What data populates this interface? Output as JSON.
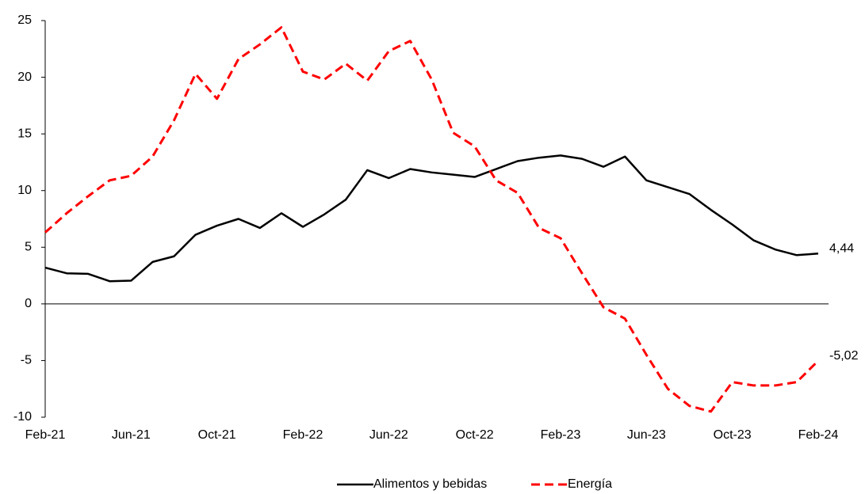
{
  "chart_data": {
    "type": "line",
    "categories": [
      "Feb-21",
      null,
      null,
      null,
      "Jun-21",
      null,
      null,
      null,
      "Oct-21",
      null,
      null,
      null,
      "Feb-22",
      null,
      null,
      null,
      "Jun-22",
      null,
      null,
      null,
      "Oct-22",
      null,
      null,
      null,
      "Feb-23",
      null,
      null,
      null,
      "Jun-23",
      null,
      null,
      null,
      "Oct-23",
      null,
      null,
      null,
      "Feb-24"
    ],
    "series": [
      {
        "name": "Alimentos y bebidas",
        "color": "#000000",
        "dashed": false,
        "values": [
          3.2,
          2.7,
          2.65,
          2.0,
          2.05,
          3.7,
          4.2,
          6.1,
          6.9,
          7.5,
          6.7,
          8.0,
          6.8,
          7.9,
          9.2,
          11.8,
          11.1,
          11.9,
          11.6,
          11.4,
          11.2,
          11.9,
          12.6,
          12.9,
          13.1,
          12.8,
          12.1,
          13.0,
          10.9,
          10.3,
          9.7,
          8.3,
          7.0,
          5.6,
          4.8,
          4.3,
          4.44
        ],
        "value_labels": [
          null,
          null,
          null,
          null,
          null,
          null,
          null,
          null,
          null,
          null,
          null,
          null,
          null,
          null,
          null,
          null,
          null,
          null,
          null,
          null,
          null,
          null,
          null,
          null,
          null,
          null,
          null,
          null,
          null,
          null,
          null,
          null,
          null,
          null,
          null,
          null,
          "4,44"
        ]
      },
      {
        "name": "Energía",
        "color": "#ff0000",
        "dashed": true,
        "values": [
          6.3,
          8.0,
          9.5,
          10.9,
          11.3,
          13.0,
          16.2,
          20.3,
          18.1,
          21.6,
          22.9,
          24.4,
          20.5,
          19.8,
          21.2,
          19.7,
          22.3,
          23.2,
          19.8,
          15.1,
          13.9,
          10.9,
          9.8,
          6.7,
          5.8,
          2.7,
          -0.3,
          -1.3,
          -4.5,
          -7.5,
          -9.0,
          -9.5,
          -6.9,
          -7.2,
          -7.2,
          -6.9,
          -5.02
        ],
        "value_labels": [
          null,
          null,
          null,
          null,
          null,
          null,
          null,
          null,
          null,
          null,
          null,
          null,
          null,
          null,
          null,
          null,
          null,
          null,
          null,
          null,
          null,
          null,
          null,
          null,
          null,
          null,
          null,
          null,
          null,
          null,
          null,
          null,
          null,
          null,
          null,
          null,
          "-5,02"
        ]
      }
    ],
    "ylim": [
      -10,
      25
    ],
    "yticks": [
      -10,
      -5,
      0,
      5,
      10,
      15,
      20,
      25
    ],
    "grid": false,
    "legend": "bottom"
  }
}
